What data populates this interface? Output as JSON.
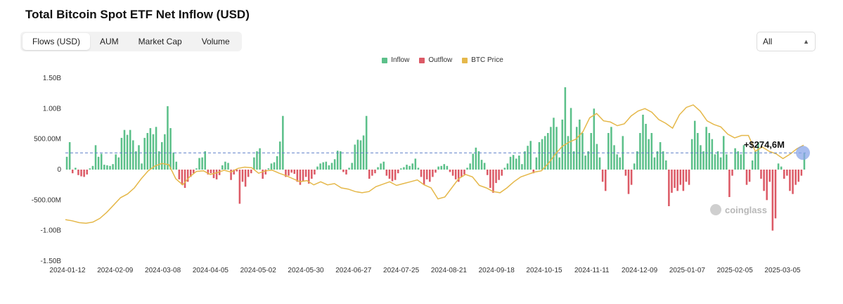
{
  "title": "Total Bitcoin Spot ETF Net Inflow (USD)",
  "tabs": [
    {
      "label": "Flows (USD)",
      "active": true
    },
    {
      "label": "AUM",
      "active": false
    },
    {
      "label": "Market Cap",
      "active": false
    },
    {
      "label": "Volume",
      "active": false
    }
  ],
  "range_select": {
    "value": "All"
  },
  "colors": {
    "inflow": "#5cc08a",
    "outflow": "#dc5a66",
    "price": "#e5b84a",
    "reference": "#5b7fc7",
    "marker": "#8aa6e8"
  },
  "watermark": "coinglass",
  "chart_data": {
    "type": "bar",
    "title": "Total Bitcoin Spot ETF Net Inflow (USD)",
    "legend": [
      "Inflow",
      "Outflow",
      "BTC Price"
    ],
    "y_ticks": [
      "1.50B",
      "1.00B",
      "500.00M",
      "0",
      "-500.00M",
      "-1.00B",
      "-1.50B"
    ],
    "ylim": [
      -1500,
      1500
    ],
    "y_unit": "M USD",
    "x_ticks": [
      "2024-01-12",
      "2024-02-09",
      "2024-03-08",
      "2024-04-05",
      "2024-05-02",
      "2024-05-30",
      "2024-06-27",
      "2024-07-25",
      "2024-08-21",
      "2024-09-18",
      "2024-10-15",
      "2024-11-11",
      "2024-12-09",
      "2025-01-07",
      "2025-02-05",
      "2025-03-05"
    ],
    "annotation": {
      "label": "+$274,6M",
      "value": 274.6
    },
    "flows": [
      210,
      450,
      -60,
      30,
      -90,
      -110,
      -120,
      -80,
      20,
      60,
      400,
      210,
      260,
      80,
      70,
      60,
      90,
      250,
      200,
      520,
      650,
      570,
      650,
      480,
      300,
      400,
      100,
      520,
      600,
      680,
      580,
      700,
      300,
      450,
      580,
      1040,
      680,
      280,
      130,
      -160,
      -250,
      -300,
      -200,
      -120,
      -60,
      20,
      190,
      200,
      300,
      -80,
      -60,
      -140,
      -160,
      -90,
      70,
      130,
      110,
      -170,
      -80,
      -30,
      -560,
      -200,
      -280,
      -120,
      -60,
      200,
      300,
      350,
      -150,
      -80,
      20,
      100,
      120,
      220,
      460,
      880,
      -120,
      -100,
      -50,
      -70,
      -200,
      -250,
      -190,
      -120,
      -230,
      -150,
      -80,
      50,
      100,
      120,
      130,
      70,
      110,
      170,
      310,
      300,
      -40,
      -80,
      30,
      110,
      410,
      490,
      480,
      560,
      880,
      -150,
      -100,
      -60,
      40,
      100,
      130,
      -100,
      -150,
      -190,
      -170,
      -60,
      20,
      40,
      80,
      60,
      100,
      180,
      30,
      -120,
      -250,
      -160,
      -200,
      -120,
      -50,
      50,
      60,
      90,
      60,
      -40,
      -100,
      -160,
      -200,
      -120,
      -80,
      30,
      100,
      260,
      360,
      300,
      160,
      110,
      -90,
      -300,
      -380,
      -220,
      -170,
      -100,
      30,
      100,
      210,
      240,
      180,
      230,
      90,
      300,
      390,
      470,
      -60,
      200,
      450,
      500,
      550,
      600,
      700,
      850,
      700,
      200,
      820,
      1350,
      550,
      1010,
      300,
      700,
      820,
      600,
      230,
      300,
      600,
      1000,
      420,
      200,
      -200,
      -350,
      600,
      700,
      400,
      250,
      200,
      550,
      -100,
      -400,
      -250,
      100,
      300,
      600,
      900,
      750,
      500,
      600,
      200,
      300,
      450,
      300,
      150,
      -600,
      -380,
      -300,
      -350,
      -250,
      -350,
      -200,
      -250,
      500,
      800,
      600,
      400,
      300,
      700,
      600,
      500,
      250,
      300,
      200,
      550,
      250,
      -450,
      -100,
      350,
      300,
      250,
      400,
      -250,
      -200,
      150,
      300,
      450,
      -150,
      -350,
      -500,
      -200,
      -1000,
      -800,
      100,
      50,
      -150,
      -100,
      -350,
      -400,
      -250,
      -200,
      -100,
      274.6
    ],
    "btc_price_curve": [
      -820,
      -840,
      -870,
      -880,
      -860,
      -800,
      -700,
      -580,
      -460,
      -400,
      -300,
      -150,
      -20,
      60,
      100,
      80,
      -150,
      -250,
      -120,
      -30,
      -20,
      -80,
      -50,
      -10,
      -40,
      20,
      40,
      30,
      -60,
      -20,
      -10,
      -60,
      -100,
      -150,
      -200,
      -180,
      -250,
      -200,
      -250,
      -230,
      -300,
      -320,
      -360,
      -380,
      -360,
      -280,
      -240,
      -200,
      -260,
      -230,
      -200,
      -170,
      -250,
      -300,
      -480,
      -450,
      -300,
      -150,
      -80,
      -120,
      -260,
      -300,
      -360,
      -380,
      -300,
      -200,
      -120,
      -80,
      -40,
      -20,
      100,
      250,
      380,
      450,
      500,
      620,
      850,
      920,
      800,
      780,
      720,
      750,
      880,
      960,
      1000,
      940,
      820,
      760,
      680,
      900,
      1020,
      1060,
      960,
      800,
      740,
      700,
      580,
      520,
      560,
      560,
      300,
      370,
      300,
      260,
      180,
      250,
      340,
      400
    ]
  }
}
